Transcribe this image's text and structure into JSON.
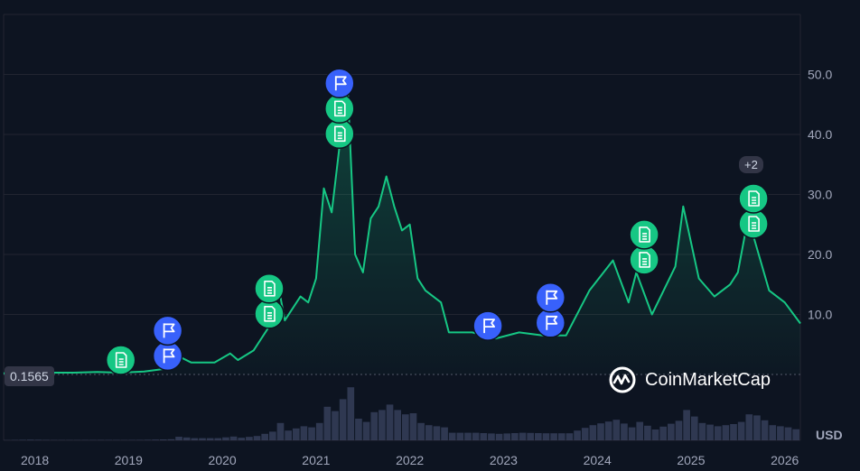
{
  "chart_data": {
    "type": "line",
    "currency": "USD",
    "start_price_label": "0.1565",
    "ylim": [
      0,
      60
    ],
    "y_ticks": [
      "10.0",
      "20.0",
      "30.0",
      "40.0",
      "50.0"
    ],
    "x_ticks": [
      "2018",
      "2019",
      "2020",
      "2021",
      "2022",
      "2023",
      "2024",
      "2025",
      "2026"
    ],
    "x_range": [
      "2017-09",
      "2026-03"
    ],
    "series": [
      {
        "color": "#16c784",
        "points": [
          [
            "2017-09",
            0.2
          ],
          [
            "2017-12",
            0.6
          ],
          [
            "2018-03",
            0.3
          ],
          [
            "2018-06",
            0.3
          ],
          [
            "2018-09",
            0.4
          ],
          [
            "2018-12",
            0.3
          ],
          [
            "2019-03",
            0.5
          ],
          [
            "2019-06",
            1.0
          ],
          [
            "2019-07",
            3.3
          ],
          [
            "2019-09",
            2.0
          ],
          [
            "2019-12",
            2.0
          ],
          [
            "2020-02",
            3.5
          ],
          [
            "2020-03",
            2.4
          ],
          [
            "2020-05",
            4.0
          ],
          [
            "2020-07",
            8.0
          ],
          [
            "2020-08",
            16.0
          ],
          [
            "2020-09",
            9.0
          ],
          [
            "2020-11",
            13.0
          ],
          [
            "2020-12",
            12.0
          ],
          [
            "2021-01",
            16.0
          ],
          [
            "2021-02",
            31.0
          ],
          [
            "2021-03",
            27.0
          ],
          [
            "2021-04",
            38.0
          ],
          [
            "2021-05",
            49.0
          ],
          [
            "2021-06",
            20.0
          ],
          [
            "2021-07",
            17.0
          ],
          [
            "2021-08",
            26.0
          ],
          [
            "2021-09",
            28.0
          ],
          [
            "2021-10",
            33.0
          ],
          [
            "2021-11",
            28.0
          ],
          [
            "2021-12",
            24.0
          ],
          [
            "2022-01",
            25.0
          ],
          [
            "2022-02",
            16.0
          ],
          [
            "2022-03",
            14.0
          ],
          [
            "2022-05",
            12.0
          ],
          [
            "2022-06",
            7.0
          ],
          [
            "2022-09",
            7.0
          ],
          [
            "2022-12",
            6.0
          ],
          [
            "2023-03",
            7.0
          ],
          [
            "2023-06",
            6.5
          ],
          [
            "2023-09",
            6.5
          ],
          [
            "2023-12",
            14.0
          ],
          [
            "2024-03",
            19.0
          ],
          [
            "2024-05",
            12.0
          ],
          [
            "2024-06",
            17.0
          ],
          [
            "2024-08",
            10.0
          ],
          [
            "2024-11",
            18.0
          ],
          [
            "2024-12",
            28.0
          ],
          [
            "2025-02",
            16.0
          ],
          [
            "2025-04",
            13.0
          ],
          [
            "2025-06",
            15.0
          ],
          [
            "2025-07",
            17.0
          ],
          [
            "2025-08",
            24.0
          ],
          [
            "2025-09",
            23.0
          ],
          [
            "2025-11",
            14.0
          ],
          [
            "2026-01",
            12.0
          ],
          [
            "2026-03",
            8.5
          ]
        ]
      }
    ],
    "events": [
      {
        "date": "2018-12",
        "type": "news",
        "icon": "document-icon",
        "level": 1
      },
      {
        "date": "2019-06",
        "type": "flag",
        "icon": "flag-icon",
        "level": 1
      },
      {
        "date": "2019-06",
        "type": "flag",
        "icon": "flag-icon",
        "level": 2
      },
      {
        "date": "2020-07",
        "type": "news",
        "icon": "document-icon",
        "level": 1
      },
      {
        "date": "2020-07",
        "type": "news",
        "icon": "document-icon",
        "level": 2
      },
      {
        "date": "2021-04",
        "type": "news",
        "icon": "document-icon",
        "level": 1
      },
      {
        "date": "2021-04",
        "type": "news",
        "icon": "document-icon",
        "level": 2
      },
      {
        "date": "2021-04",
        "type": "flag",
        "icon": "flag-icon",
        "level": 3
      },
      {
        "date": "2022-11",
        "type": "flag",
        "icon": "flag-icon",
        "level": 1
      },
      {
        "date": "2023-07",
        "type": "flag",
        "icon": "flag-icon",
        "level": 1
      },
      {
        "date": "2023-07",
        "type": "flag",
        "icon": "flag-icon",
        "level": 2
      },
      {
        "date": "2024-07",
        "type": "news",
        "icon": "document-icon",
        "level": 1
      },
      {
        "date": "2024-07",
        "type": "news",
        "icon": "document-icon",
        "level": 2
      },
      {
        "date": "2025-09",
        "type": "news",
        "icon": "document-icon",
        "level": 1
      },
      {
        "date": "2025-09",
        "type": "news",
        "icon": "document-icon",
        "level": 2
      }
    ],
    "hidden_events_label": "+2",
    "grid": true,
    "watermark": "CoinMarketCap"
  },
  "colors": {
    "background": "#0d1421",
    "line": "#16c784",
    "flag_marker": "#3861fb",
    "news_marker": "#16c784",
    "grid": "#222531",
    "text": "#a1a7bb"
  }
}
